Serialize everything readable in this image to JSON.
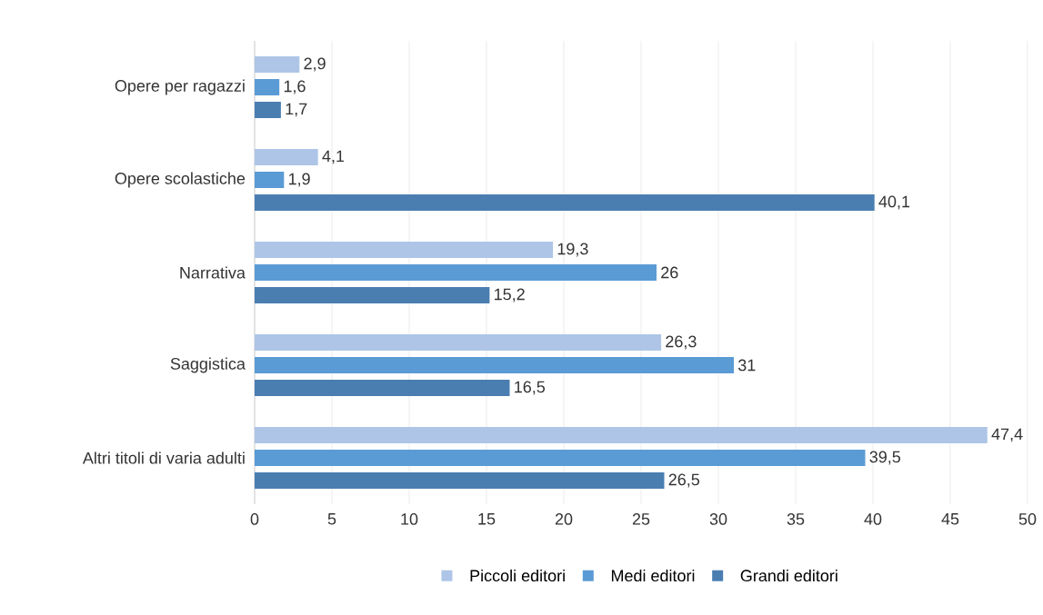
{
  "chart_data": {
    "type": "bar",
    "orientation": "horizontal",
    "categories": [
      "Opere per ragazzi",
      "Opere scolastiche",
      "Narrativa",
      "Saggistica",
      "Altri titoli di varia adulti"
    ],
    "series": [
      {
        "name": "Piccoli editori",
        "color": "#aec5e7",
        "values": [
          2.9,
          4.1,
          19.3,
          26.3,
          47.4
        ],
        "value_labels": [
          "2,9",
          "4,1",
          "19,3",
          "26,3",
          "47,4"
        ]
      },
      {
        "name": "Medi editori",
        "color": "#5b9bd5",
        "values": [
          1.6,
          1.9,
          26,
          31,
          39.5
        ],
        "value_labels": [
          "1,6",
          "1,9",
          "26",
          "31",
          "39,5"
        ]
      },
      {
        "name": "Grandi editori",
        "color": "#4a7eb1",
        "values": [
          1.7,
          40.1,
          15.2,
          16.5,
          26.5
        ],
        "value_labels": [
          "1,7",
          "40,1",
          "15,2",
          "16,5",
          "26,5"
        ]
      }
    ],
    "xlim": [
      0,
      50
    ],
    "xticks": [
      0,
      5,
      10,
      15,
      20,
      25,
      30,
      35,
      40,
      45,
      50
    ],
    "grid": "x",
    "legend": "bottom"
  }
}
